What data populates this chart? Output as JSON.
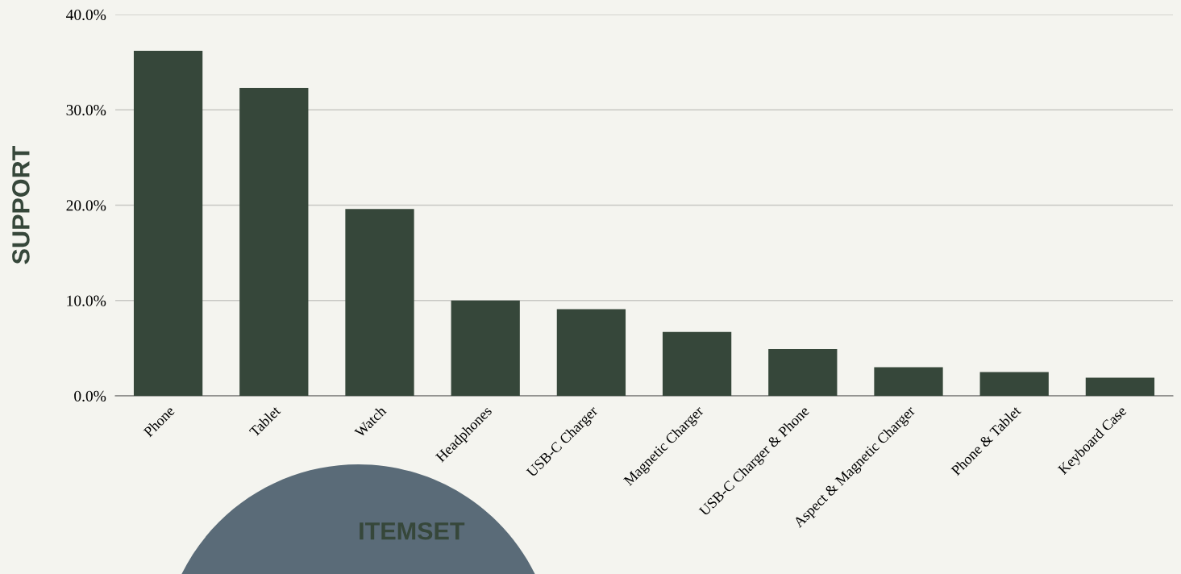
{
  "chart_data": {
    "type": "bar",
    "xlabel": "ITEMSET",
    "ylabel": "SUPPORT",
    "categories": [
      "Phone",
      "Tablet",
      "Watch",
      "Headphones",
      "USB-C Charger",
      "Magnetic Charger",
      "USB-C Charger & Phone",
      "Aspect & Magnetic Charger",
      "Phone & Tablet",
      "Keyboard Case"
    ],
    "values": [
      36.2,
      32.3,
      19.6,
      10.0,
      9.1,
      6.7,
      4.9,
      3.0,
      2.5,
      1.9
    ],
    "color": "#36473a",
    "ylim": [
      0,
      40
    ],
    "yticks": [
      {
        "value": 0,
        "label": "0.0%"
      },
      {
        "value": 10,
        "label": "10.0%"
      },
      {
        "value": 20,
        "label": "20.0%"
      },
      {
        "value": 30,
        "label": "30.0%"
      },
      {
        "value": 40,
        "label": "40.0%"
      }
    ],
    "grid": "y",
    "legend": false
  }
}
